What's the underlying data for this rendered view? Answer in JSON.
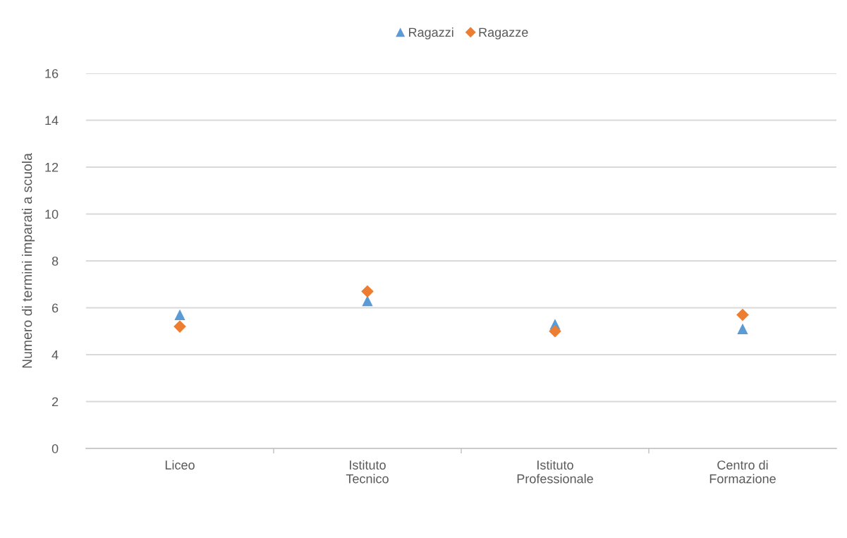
{
  "chart_data": {
    "type": "scatter",
    "categories": [
      "Liceo",
      "Istituto\nTecnico",
      "Istituto\nProfessionale",
      "Centro di\nFormazione"
    ],
    "ylabel": "Numero di termini imparati a scuola",
    "series": [
      {
        "name": "Ragazzi",
        "color": "#5b9bd5",
        "marker": "triangle",
        "values": [
          5.7,
          6.3,
          5.3,
          5.1
        ]
      },
      {
        "name": "Ragazze",
        "color": "#ed7d31",
        "marker": "diamond",
        "values": [
          5.2,
          6.7,
          5.0,
          5.7
        ]
      }
    ],
    "ylim": [
      0,
      16
    ],
    "yticks": [
      0,
      2,
      4,
      6,
      8,
      10,
      12,
      14,
      16
    ],
    "grid": "y",
    "legend": "top"
  }
}
